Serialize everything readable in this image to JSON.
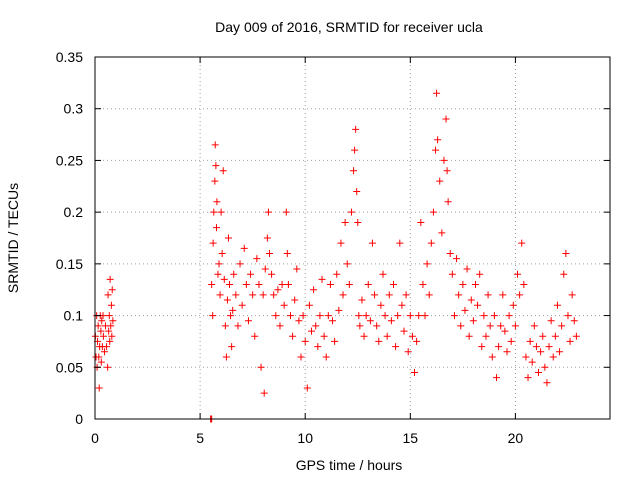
{
  "chart_data": {
    "type": "scatter",
    "title": "Day 009 of 2016, SRMTID for receiver ucla",
    "xlabel": "GPS time / hours",
    "ylabel": "SRMTID / TECUs",
    "xlim": [
      0,
      24.5
    ],
    "ylim": [
      0,
      0.35
    ],
    "x_ticks": [
      0,
      5,
      10,
      15,
      20
    ],
    "x_tick_labels": [
      "0",
      "5",
      "10",
      "15",
      "20"
    ],
    "y_ticks": [
      0,
      0.05,
      0.1,
      0.15,
      0.2,
      0.25,
      0.3,
      0.35
    ],
    "y_tick_labels": [
      "0",
      "0.05",
      "0.1",
      "0.15",
      "0.2",
      "0.25",
      "0.3",
      "0.35"
    ],
    "grid": true,
    "marker": "plus",
    "color": "#ff0000",
    "series": [
      {
        "points": [
          [
            0.02,
            0.08
          ],
          [
            0.05,
            0.06
          ],
          [
            0.08,
            0.1
          ],
          [
            0.1,
            0.05
          ],
          [
            0.12,
            0.075
          ],
          [
            0.15,
            0.09
          ],
          [
            0.18,
            0.06
          ],
          [
            0.2,
            0.03
          ],
          [
            0.22,
            0.07
          ],
          [
            0.25,
            0.1
          ],
          [
            0.28,
            0.085
          ],
          [
            0.3,
            0.055
          ],
          [
            0.32,
            0.095
          ],
          [
            0.35,
            0.07
          ],
          [
            0.38,
            0.1
          ],
          [
            0.4,
            0.08
          ],
          [
            0.45,
            0.065
          ],
          [
            0.5,
            0.09
          ],
          [
            0.55,
            0.07
          ],
          [
            0.6,
            0.05
          ],
          [
            0.62,
            0.12
          ],
          [
            0.65,
            0.085
          ],
          [
            0.68,
            0.1
          ],
          [
            0.7,
            0.075
          ],
          [
            0.72,
            0.135
          ],
          [
            0.75,
            0.09
          ],
          [
            0.78,
            0.11
          ],
          [
            0.8,
            0.08
          ],
          [
            0.82,
            0.125
          ],
          [
            0.85,
            0.095
          ],
          [
            5.5,
            0.0
          ],
          [
            5.52,
            0.0
          ],
          [
            5.55,
            0.0
          ],
          [
            5.55,
            0.13
          ],
          [
            5.6,
            0.1
          ],
          [
            5.62,
            0.17
          ],
          [
            5.65,
            0.2
          ],
          [
            5.7,
            0.23
          ],
          [
            5.72,
            0.265
          ],
          [
            5.75,
            0.245
          ],
          [
            5.78,
            0.185
          ],
          [
            5.8,
            0.21
          ],
          [
            5.85,
            0.14
          ],
          [
            5.9,
            0.15
          ],
          [
            5.95,
            0.12
          ],
          [
            6.0,
            0.2
          ],
          [
            6.05,
            0.16
          ],
          [
            6.1,
            0.24
          ],
          [
            6.15,
            0.135
          ],
          [
            6.2,
            0.09
          ],
          [
            6.25,
            0.06
          ],
          [
            6.3,
            0.115
          ],
          [
            6.35,
            0.175
          ],
          [
            6.4,
            0.13
          ],
          [
            6.45,
            0.1
          ],
          [
            6.5,
            0.07
          ],
          [
            6.55,
            0.105
          ],
          [
            6.6,
            0.14
          ],
          [
            6.7,
            0.12
          ],
          [
            6.8,
            0.09
          ],
          [
            6.9,
            0.15
          ],
          [
            7.0,
            0.11
          ],
          [
            7.1,
            0.165
          ],
          [
            7.2,
            0.13
          ],
          [
            7.3,
            0.095
          ],
          [
            7.4,
            0.14
          ],
          [
            7.5,
            0.12
          ],
          [
            7.6,
            0.08
          ],
          [
            7.7,
            0.155
          ],
          [
            7.8,
            0.13
          ],
          [
            7.9,
            0.05
          ],
          [
            8.0,
            0.12
          ],
          [
            8.05,
            0.025
          ],
          [
            8.1,
            0.145
          ],
          [
            8.2,
            0.175
          ],
          [
            8.25,
            0.2
          ],
          [
            8.3,
            0.16
          ],
          [
            8.4,
            0.14
          ],
          [
            8.5,
            0.12
          ],
          [
            8.6,
            0.1
          ],
          [
            8.7,
            0.125
          ],
          [
            8.8,
            0.09
          ],
          [
            8.9,
            0.13
          ],
          [
            9.0,
            0.11
          ],
          [
            9.1,
            0.2
          ],
          [
            9.15,
            0.16
          ],
          [
            9.2,
            0.13
          ],
          [
            9.3,
            0.1
          ],
          [
            9.4,
            0.08
          ],
          [
            9.5,
            0.115
          ],
          [
            9.6,
            0.145
          ],
          [
            9.7,
            0.095
          ],
          [
            9.8,
            0.06
          ],
          [
            9.9,
            0.1
          ],
          [
            10.0,
            0.075
          ],
          [
            10.1,
            0.03
          ],
          [
            10.2,
            0.11
          ],
          [
            10.3,
            0.085
          ],
          [
            10.4,
            0.125
          ],
          [
            10.5,
            0.09
          ],
          [
            10.6,
            0.07
          ],
          [
            10.7,
            0.1
          ],
          [
            10.8,
            0.135
          ],
          [
            10.9,
            0.08
          ],
          [
            11.0,
            0.06
          ],
          [
            11.1,
            0.1
          ],
          [
            11.2,
            0.13
          ],
          [
            11.3,
            0.095
          ],
          [
            11.4,
            0.075
          ],
          [
            11.5,
            0.14
          ],
          [
            11.6,
            0.105
          ],
          [
            11.7,
            0.17
          ],
          [
            11.8,
            0.12
          ],
          [
            11.9,
            0.19
          ],
          [
            12.0,
            0.15
          ],
          [
            12.1,
            0.13
          ],
          [
            12.2,
            0.2
          ],
          [
            12.3,
            0.24
          ],
          [
            12.35,
            0.26
          ],
          [
            12.4,
            0.28
          ],
          [
            12.45,
            0.22
          ],
          [
            12.5,
            0.19
          ],
          [
            12.55,
            0.1
          ],
          [
            12.6,
            0.09
          ],
          [
            12.7,
            0.115
          ],
          [
            12.8,
            0.08
          ],
          [
            12.9,
            0.1
          ],
          [
            13.0,
            0.13
          ],
          [
            13.1,
            0.095
          ],
          [
            13.2,
            0.17
          ],
          [
            13.3,
            0.12
          ],
          [
            13.4,
            0.09
          ],
          [
            13.5,
            0.075
          ],
          [
            13.6,
            0.11
          ],
          [
            13.7,
            0.14
          ],
          [
            13.8,
            0.1
          ],
          [
            13.9,
            0.08
          ],
          [
            14.0,
            0.12
          ],
          [
            14.1,
            0.095
          ],
          [
            14.2,
            0.13
          ],
          [
            14.3,
            0.07
          ],
          [
            14.4,
            0.1
          ],
          [
            14.5,
            0.17
          ],
          [
            14.6,
            0.11
          ],
          [
            14.7,
            0.085
          ],
          [
            14.8,
            0.12
          ],
          [
            14.9,
            0.065
          ],
          [
            15.0,
            0.1
          ],
          [
            15.1,
            0.08
          ],
          [
            15.2,
            0.045
          ],
          [
            15.3,
            0.075
          ],
          [
            15.4,
            0.1
          ],
          [
            15.5,
            0.19
          ],
          [
            15.6,
            0.13
          ],
          [
            15.7,
            0.1
          ],
          [
            15.8,
            0.15
          ],
          [
            15.9,
            0.12
          ],
          [
            16.0,
            0.17
          ],
          [
            16.1,
            0.2
          ],
          [
            16.2,
            0.26
          ],
          [
            16.25,
            0.315
          ],
          [
            16.3,
            0.27
          ],
          [
            16.4,
            0.23
          ],
          [
            16.5,
            0.18
          ],
          [
            16.6,
            0.25
          ],
          [
            16.7,
            0.29
          ],
          [
            16.75,
            0.24
          ],
          [
            16.8,
            0.21
          ],
          [
            16.9,
            0.16
          ],
          [
            17.0,
            0.14
          ],
          [
            17.1,
            0.1
          ],
          [
            17.2,
            0.155
          ],
          [
            17.3,
            0.12
          ],
          [
            17.4,
            0.09
          ],
          [
            17.5,
            0.13
          ],
          [
            17.6,
            0.105
          ],
          [
            17.7,
            0.145
          ],
          [
            17.8,
            0.08
          ],
          [
            17.9,
            0.115
          ],
          [
            18.0,
            0.095
          ],
          [
            18.1,
            0.13
          ],
          [
            18.2,
            0.11
          ],
          [
            18.3,
            0.14
          ],
          [
            18.4,
            0.07
          ],
          [
            18.5,
            0.1
          ],
          [
            18.6,
            0.08
          ],
          [
            18.7,
            0.12
          ],
          [
            18.8,
            0.09
          ],
          [
            18.9,
            0.06
          ],
          [
            19.0,
            0.1
          ],
          [
            19.1,
            0.04
          ],
          [
            19.2,
            0.07
          ],
          [
            19.3,
            0.09
          ],
          [
            19.4,
            0.12
          ],
          [
            19.5,
            0.085
          ],
          [
            19.6,
            0.065
          ],
          [
            19.7,
            0.1
          ],
          [
            19.8,
            0.075
          ],
          [
            19.9,
            0.11
          ],
          [
            20.0,
            0.09
          ],
          [
            20.1,
            0.14
          ],
          [
            20.2,
            0.12
          ],
          [
            20.3,
            0.17
          ],
          [
            20.4,
            0.13
          ],
          [
            20.5,
            0.06
          ],
          [
            20.6,
            0.04
          ],
          [
            20.7,
            0.075
          ],
          [
            20.8,
            0.055
          ],
          [
            20.9,
            0.09
          ],
          [
            21.0,
            0.07
          ],
          [
            21.1,
            0.045
          ],
          [
            21.2,
            0.065
          ],
          [
            21.3,
            0.08
          ],
          [
            21.4,
            0.05
          ],
          [
            21.5,
            0.035
          ],
          [
            21.6,
            0.07
          ],
          [
            21.7,
            0.095
          ],
          [
            21.8,
            0.06
          ],
          [
            21.9,
            0.08
          ],
          [
            22.0,
            0.11
          ],
          [
            22.1,
            0.065
          ],
          [
            22.2,
            0.09
          ],
          [
            22.3,
            0.14
          ],
          [
            22.4,
            0.16
          ],
          [
            22.5,
            0.1
          ],
          [
            22.6,
            0.075
          ],
          [
            22.7,
            0.12
          ],
          [
            22.8,
            0.095
          ],
          [
            22.9,
            0.08
          ]
        ]
      }
    ]
  }
}
